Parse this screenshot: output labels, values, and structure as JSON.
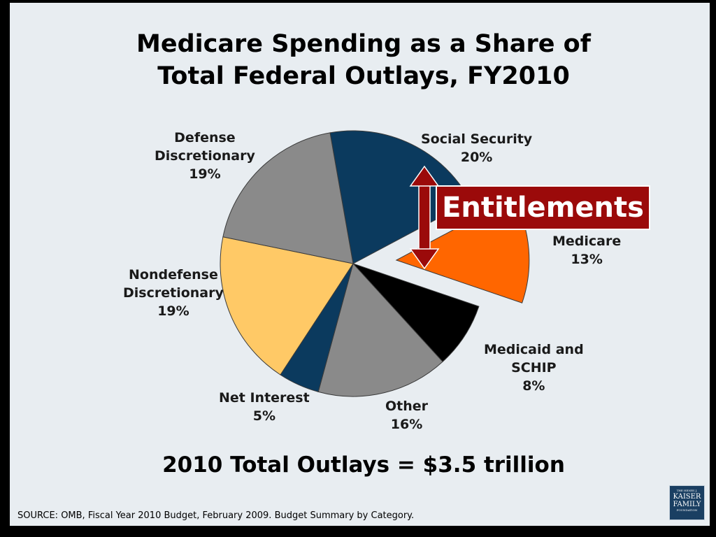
{
  "title_lines": [
    "Medicare Spending as a Share of",
    "Total Federal Outlays, FY2010"
  ],
  "chart_data": {
    "type": "pie",
    "title": "Medicare Spending as a Share of Total Federal Outlays, FY2010",
    "slices": [
      {
        "label_lines": [
          "Social Security",
          "20%"
        ],
        "value": 20,
        "color": "#0b3a5e",
        "exploded": false
      },
      {
        "label_lines": [
          "Medicare",
          "13%"
        ],
        "value": 13,
        "color": "#ff6600",
        "exploded": true
      },
      {
        "label_lines": [
          "Medicaid and",
          "SCHIP",
          "8%"
        ],
        "value": 8,
        "color": "#000000",
        "exploded": false
      },
      {
        "label_lines": [
          "Other",
          "16%"
        ],
        "value": 16,
        "color": "#8a8a8a",
        "exploded": false
      },
      {
        "label_lines": [
          "Net Interest",
          "5%"
        ],
        "value": 5,
        "color": "#0b3a5e",
        "exploded": false
      },
      {
        "label_lines": [
          "Nondefense",
          "Discretionary",
          "19%"
        ],
        "value": 19,
        "color": "#ffc966",
        "exploded": false
      },
      {
        "label_lines": [
          "Defense",
          "Discretionary",
          "19%"
        ],
        "value": 19,
        "color": "#8a8a8a",
        "exploded": false
      }
    ],
    "annotation": "Entitlements",
    "annotation_color": "#9b0a0a"
  },
  "total_text": "2010 Total Outlays = $3.5 trillion",
  "source_text": "SOURCE: OMB, Fiscal Year 2010 Budget, February 2009.  Budget Summary by Category.",
  "logo": {
    "line1": "THE HENRY J.",
    "line2": "KAISER",
    "line3": "FAMILY",
    "line4": "FOUNDATION"
  }
}
